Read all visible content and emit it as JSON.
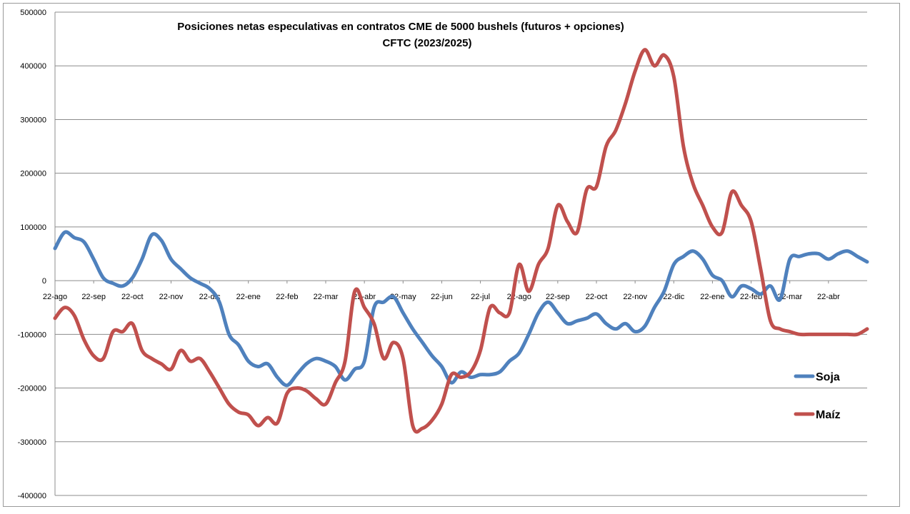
{
  "chart_data": {
    "type": "line",
    "title": "Posiciones netas especulativas en contratos CME de 5000 bushels (futuros + opciones)",
    "subtitle": "CFTC (2023/2025)",
    "xlabel": "",
    "ylabel": "",
    "ylim": [
      -400000,
      500000
    ],
    "yticks": [
      500000,
      400000,
      300000,
      200000,
      100000,
      0,
      -100000,
      -200000,
      -300000,
      -400000
    ],
    "ytick_labels": [
      "500000",
      "400000",
      "300000",
      "200000",
      "100000",
      "0",
      "-100000",
      "-200000",
      "-300000",
      "-400000"
    ],
    "categories": [
      "22-ago",
      "22-sep",
      "22-oct",
      "22-nov",
      "22-dic",
      "22-ene",
      "22-feb",
      "22-mar",
      "22-abr",
      "22-may",
      "22-jun",
      "22-jul",
      "22-ago",
      "22-sep",
      "22-oct",
      "22-nov",
      "22-dic",
      "22-ene",
      "22-feb",
      "22-mar",
      "22-abr"
    ],
    "x_tick_positions": [
      0,
      1,
      2,
      3,
      4,
      5,
      6,
      7,
      8,
      9,
      10,
      11,
      12,
      13,
      14,
      15,
      16,
      17,
      18,
      19,
      20
    ],
    "x_range": [
      0,
      21
    ],
    "grid": true,
    "legend_position": "right",
    "series": [
      {
        "name": "Soja",
        "color": "#4f81bd",
        "x": [
          0,
          0.25,
          0.5,
          0.75,
          1,
          1.25,
          1.5,
          1.75,
          2,
          2.25,
          2.5,
          2.75,
          3,
          3.25,
          3.5,
          3.75,
          4,
          4.25,
          4.5,
          4.75,
          5,
          5.25,
          5.5,
          5.75,
          6,
          6.25,
          6.5,
          6.75,
          7,
          7.25,
          7.5,
          7.75,
          8,
          8.25,
          8.5,
          8.75,
          9,
          9.25,
          9.5,
          9.75,
          10,
          10.25,
          10.5,
          10.75,
          11,
          11.25,
          11.5,
          11.75,
          12,
          12.25,
          12.5,
          12.75,
          13,
          13.25,
          13.5,
          13.75,
          14,
          14.25,
          14.5,
          14.75,
          15,
          15.25,
          15.5,
          15.75,
          16,
          16.25,
          16.5,
          16.75,
          17,
          17.25,
          17.5,
          17.75,
          18,
          18.25,
          18.5,
          18.75,
          19,
          19.25,
          19.5,
          19.75,
          20,
          20.25,
          20.5,
          20.75,
          21
        ],
        "values": [
          60000,
          90000,
          80000,
          72000,
          40000,
          5000,
          -5000,
          -10000,
          5000,
          40000,
          85000,
          75000,
          40000,
          22000,
          5000,
          -5000,
          -15000,
          -40000,
          -100000,
          -120000,
          -150000,
          -160000,
          -155000,
          -180000,
          -195000,
          -175000,
          -155000,
          -145000,
          -150000,
          -160000,
          -185000,
          -165000,
          -150000,
          -50000,
          -40000,
          -30000,
          -60000,
          -90000,
          -115000,
          -140000,
          -160000,
          -190000,
          -170000,
          -180000,
          -175000,
          -175000,
          -170000,
          -150000,
          -135000,
          -100000,
          -60000,
          -40000,
          -60000,
          -80000,
          -75000,
          -70000,
          -62000,
          -80000,
          -90000,
          -80000,
          -95000,
          -85000,
          -50000,
          -20000,
          30000,
          45000,
          55000,
          40000,
          10000,
          0,
          -30000,
          -10000,
          -15000,
          -25000,
          -10000,
          -35000,
          40000,
          45000,
          50000,
          50000,
          40000,
          50000,
          55000,
          45000,
          35000
        ]
      },
      {
        "name": "Maíz",
        "color": "#c0504d",
        "x": [
          0,
          0.25,
          0.5,
          0.75,
          1,
          1.25,
          1.5,
          1.75,
          2,
          2.25,
          2.5,
          2.75,
          3,
          3.25,
          3.5,
          3.75,
          4,
          4.25,
          4.5,
          4.75,
          5,
          5.25,
          5.5,
          5.75,
          6,
          6.25,
          6.5,
          6.75,
          7,
          7.25,
          7.5,
          7.75,
          8,
          8.25,
          8.5,
          8.75,
          9,
          9.25,
          9.5,
          9.75,
          10,
          10.25,
          10.5,
          10.75,
          11,
          11.25,
          11.5,
          11.75,
          12,
          12.25,
          12.5,
          12.75,
          13,
          13.25,
          13.5,
          13.75,
          14,
          14.25,
          14.5,
          14.75,
          15,
          15.25,
          15.5,
          15.75,
          16,
          16.25,
          16.5,
          16.75,
          17,
          17.25,
          17.5,
          17.75,
          18,
          18.25,
          18.5,
          18.75,
          19,
          19.25,
          19.5,
          19.75,
          20,
          20.25,
          20.5,
          20.75,
          21
        ],
        "values": [
          -70000,
          -50000,
          -65000,
          -110000,
          -140000,
          -145000,
          -95000,
          -95000,
          -80000,
          -130000,
          -145000,
          -155000,
          -165000,
          -130000,
          -150000,
          -145000,
          -170000,
          -200000,
          -230000,
          -245000,
          -250000,
          -270000,
          -255000,
          -265000,
          -210000,
          -200000,
          -205000,
          -220000,
          -230000,
          -190000,
          -150000,
          -20000,
          -50000,
          -80000,
          -145000,
          -115000,
          -145000,
          -270000,
          -275000,
          -260000,
          -230000,
          -175000,
          -180000,
          -170000,
          -130000,
          -50000,
          -60000,
          -60000,
          30000,
          -20000,
          30000,
          60000,
          140000,
          110000,
          90000,
          170000,
          175000,
          250000,
          280000,
          330000,
          390000,
          430000,
          400000,
          420000,
          380000,
          250000,
          180000,
          140000,
          100000,
          90000,
          165000,
          140000,
          110000,
          20000,
          -75000,
          -90000,
          -95000,
          -100000,
          -100000,
          -100000,
          -100000,
          -100000,
          -100000,
          -100000,
          -90000
        ]
      }
    ]
  }
}
